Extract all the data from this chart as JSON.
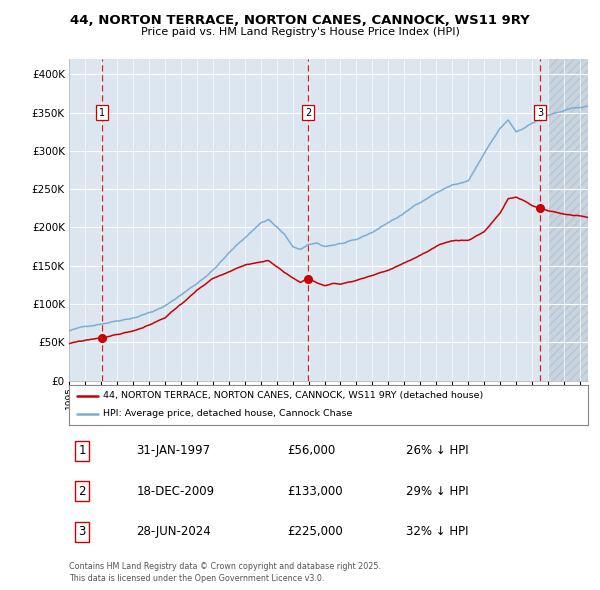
{
  "title_line1": "44, NORTON TERRACE, NORTON CANES, CANNOCK, WS11 9RY",
  "title_line2": "Price paid vs. HM Land Registry's House Price Index (HPI)",
  "legend_red": "44, NORTON TERRACE, NORTON CANES, CANNOCK, WS11 9RY (detached house)",
  "legend_blue": "HPI: Average price, detached house, Cannock Chase",
  "footer": "Contains HM Land Registry data © Crown copyright and database right 2025.\nThis data is licensed under the Open Government Licence v3.0.",
  "transactions": [
    {
      "num": 1,
      "date": "31-JAN-1997",
      "price": "£56,000",
      "hpi": "26% ↓ HPI",
      "year": 1997.08
    },
    {
      "num": 2,
      "date": "18-DEC-2009",
      "price": "£133,000",
      "hpi": "29% ↓ HPI",
      "year": 2009.96
    },
    {
      "num": 3,
      "date": "28-JUN-2024",
      "price": "£225,000",
      "hpi": "32% ↓ HPI",
      "year": 2024.49
    }
  ],
  "transaction_values": [
    56000,
    133000,
    225000
  ],
  "red_color": "#cc0000",
  "blue_color": "#7aaed4",
  "background_color": "#dce6f0",
  "hatch_bg_color": "#c8d4e0",
  "grid_color": "#ffffff",
  "vline_color": "#cc0000",
  "ylim": [
    0,
    420000
  ],
  "xlim_start": 1995.0,
  "xlim_end": 2027.5,
  "future_start": 2025.0,
  "yticks": [
    0,
    50000,
    100000,
    150000,
    200000,
    250000,
    300000,
    350000,
    400000
  ],
  "ytick_labels": [
    "£0",
    "£50K",
    "£100K",
    "£150K",
    "£200K",
    "£250K",
    "£300K",
    "£350K",
    "£400K"
  ]
}
